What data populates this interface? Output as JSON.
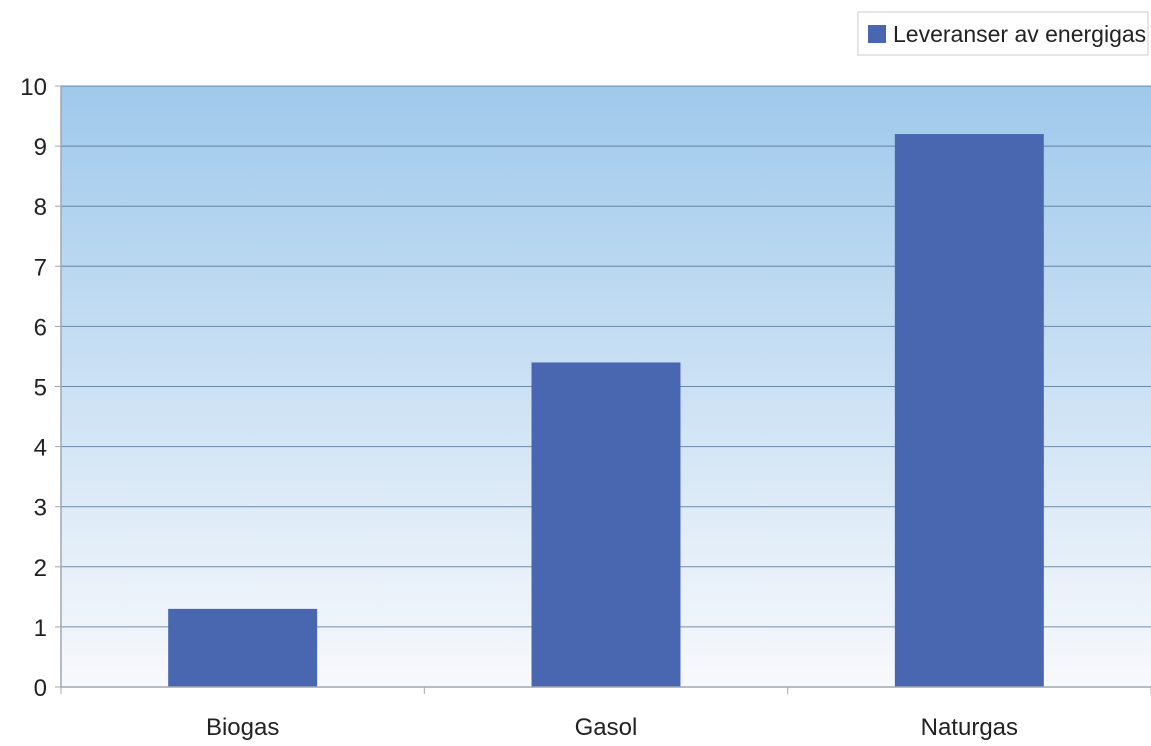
{
  "chart_data": {
    "type": "bar",
    "categories": [
      "Biogas",
      "Gasol",
      "Naturgas"
    ],
    "series": [
      {
        "name": "Leveranser av energigas",
        "values": [
          1.3,
          5.4,
          9.2
        ]
      }
    ],
    "ylim": [
      0,
      10
    ],
    "yticks": [
      0,
      1,
      2,
      3,
      4,
      5,
      6,
      7,
      8,
      9,
      10
    ],
    "grid": true,
    "legend_position": "top-right",
    "colors": {
      "bar": "#4966B0",
      "plot_top": "#9FC9EC",
      "plot_bottom": "#F8F9FC",
      "grid": "#4B6B8C",
      "axis": "#A0A7B0"
    }
  }
}
